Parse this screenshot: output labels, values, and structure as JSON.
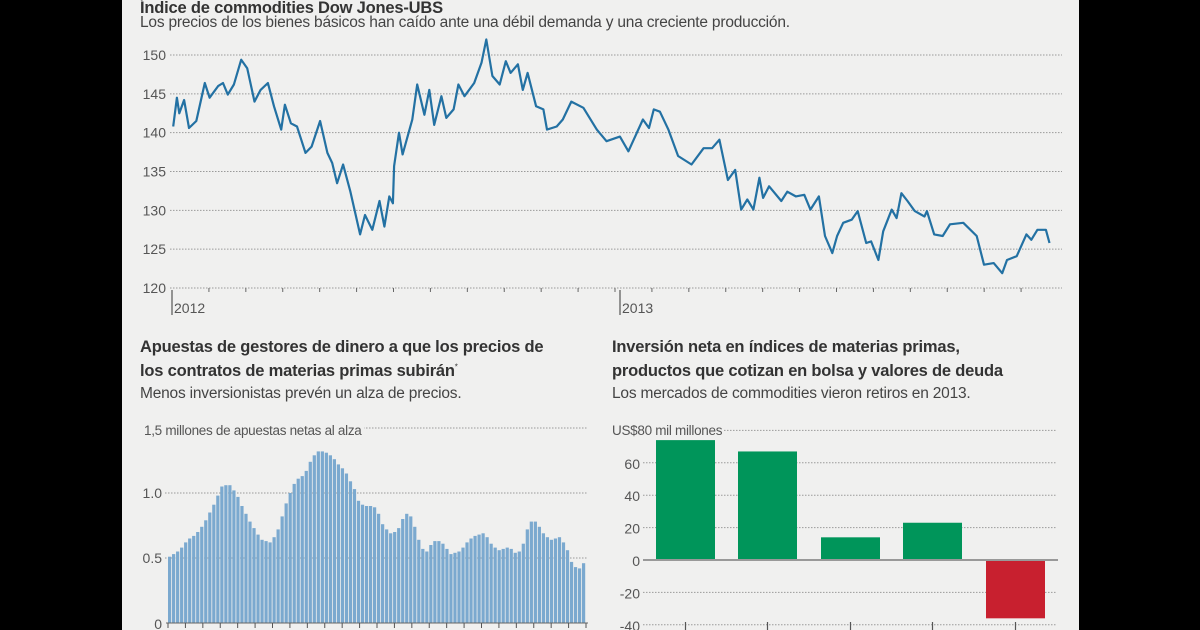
{
  "top": {
    "title": "Índice de commodities Dow Jones-UBS",
    "subtitle": "Los precios de los bienes básicos han caído ante una débil demanda y una creciente producción."
  },
  "bottom_left": {
    "title_line1": "Apuestas de gestores de dinero a que los precios de",
    "title_line2": "los contratos de materias primas subirán",
    "title_mark": "*",
    "subtitle": "Menos inversionistas prevén un alza de precios.",
    "unit_label": "1,5 millones de apuestas netas al alza"
  },
  "bottom_right": {
    "title_line1": "Inversión neta en índices de materias primas,",
    "title_line2": "productos que cotizan en bolsa y valores de deuda",
    "subtitle": "Los mercados de commodities vieron retiros en 2013.",
    "unit_label": "US$80  mil millones"
  },
  "colors": {
    "line": "#2371a3",
    "bars_blue": "#7ba9cf",
    "positive": "#00955a",
    "negative": "#c8202f",
    "background": "#f0f0ef"
  },
  "chart_data": [
    {
      "type": "line",
      "title": "Índice de commodities Dow Jones-UBS",
      "ylim": [
        120,
        150
      ],
      "yticks": [
        150,
        145,
        140,
        135,
        130,
        125,
        120
      ],
      "xlim": [
        "2012-01-01",
        "2013-12-31"
      ],
      "xtick_labels": [
        "2012",
        "2013"
      ],
      "grid": true,
      "x": [
        "2012-01-02",
        "2012-01-05",
        "2012-01-07",
        "2012-01-11",
        "2012-01-15",
        "2012-01-21",
        "2012-01-28",
        "2012-02-01",
        "2012-02-08",
        "2012-02-12",
        "2012-02-16",
        "2012-02-21",
        "2012-02-27",
        "2012-03-03",
        "2012-03-09",
        "2012-03-14",
        "2012-03-20",
        "2012-03-25",
        "2012-03-31",
        "2012-04-03",
        "2012-04-08",
        "2012-04-13",
        "2012-04-20",
        "2012-04-25",
        "2012-05-02",
        "2012-05-08",
        "2012-05-12",
        "2012-05-16",
        "2012-05-21",
        "2012-05-27",
        "2012-06-04",
        "2012-06-08",
        "2012-06-14",
        "2012-06-20",
        "2012-06-24",
        "2012-06-28",
        "2012-07-01",
        "2012-07-02",
        "2012-07-06",
        "2012-07-09",
        "2012-07-17",
        "2012-07-21",
        "2012-07-27",
        "2012-07-31",
        "2012-08-04",
        "2012-08-10",
        "2012-08-14",
        "2012-08-20",
        "2012-08-24",
        "2012-08-29",
        "2012-09-06",
        "2012-09-12",
        "2012-09-16",
        "2012-09-21",
        "2012-09-27",
        "2012-10-02",
        "2012-10-06",
        "2012-10-12",
        "2012-10-16",
        "2012-10-20",
        "2012-10-27",
        "2012-11-02",
        "2012-11-05",
        "2012-11-13",
        "2012-11-18",
        "2012-11-25",
        "2012-12-05",
        "2012-12-16",
        "2012-12-24",
        "2013-01-04",
        "2013-01-11",
        "2013-01-23",
        "2013-01-28",
        "2013-02-01",
        "2013-02-06",
        "2013-02-13",
        "2013-02-21",
        "2013-03-04",
        "2013-03-14",
        "2013-03-21",
        "2013-03-27",
        "2013-04-03",
        "2013-04-09",
        "2013-04-14",
        "2013-04-19",
        "2013-04-24",
        "2013-04-29",
        "2013-05-02",
        "2013-05-07",
        "2013-05-17",
        "2013-05-22",
        "2013-05-29",
        "2013-06-05",
        "2013-06-10",
        "2013-06-17",
        "2013-06-22",
        "2013-06-28",
        "2013-07-02",
        "2013-07-07",
        "2013-07-14",
        "2013-07-19",
        "2013-07-26",
        "2013-07-30",
        "2013-08-05",
        "2013-08-09",
        "2013-08-16",
        "2013-08-20",
        "2013-08-24",
        "2013-08-29",
        "2013-09-04",
        "2013-09-12",
        "2013-09-14",
        "2013-09-20",
        "2013-09-27",
        "2013-10-03",
        "2013-10-14",
        "2013-10-25",
        "2013-10-31",
        "2013-11-08",
        "2013-11-15",
        "2013-11-19",
        "2013-11-27",
        "2013-12-05",
        "2013-12-09",
        "2013-12-14",
        "2013-12-21",
        "2013-12-24"
      ],
      "y": [
        140.8,
        144.5,
        142.5,
        144.2,
        140.6,
        141.5,
        146.4,
        144.5,
        146.0,
        146.4,
        144.9,
        146.2,
        149.4,
        148.3,
        144.0,
        145.5,
        146.4,
        143.4,
        140.4,
        143.6,
        141.2,
        140.8,
        137.4,
        138.2,
        141.5,
        137.4,
        136.1,
        133.5,
        135.9,
        132.4,
        126.9,
        129.4,
        127.5,
        131.2,
        127.9,
        131.8,
        130.9,
        135.7,
        140.0,
        137.2,
        141.7,
        146.2,
        142.3,
        145.5,
        141.0,
        144.7,
        141.9,
        143.0,
        146.2,
        144.7,
        146.4,
        149.0,
        152.0,
        147.3,
        146.2,
        149.2,
        147.7,
        148.8,
        145.5,
        147.7,
        143.4,
        143.0,
        140.4,
        140.8,
        141.7,
        144.0,
        143.2,
        140.4,
        138.9,
        139.5,
        137.6,
        141.7,
        140.6,
        143.0,
        142.7,
        140.4,
        137.0,
        135.9,
        138.0,
        138.0,
        139.1,
        133.9,
        135.2,
        130.1,
        131.4,
        130.1,
        134.2,
        131.6,
        133.1,
        131.2,
        132.4,
        131.8,
        132.0,
        130.1,
        131.8,
        126.7,
        124.5,
        126.7,
        128.4,
        128.8,
        129.9,
        125.8,
        126.0,
        123.6,
        127.3,
        130.1,
        129.0,
        132.2,
        131.2,
        129.9,
        129.2,
        129.9,
        126.9,
        126.7,
        128.2,
        128.4,
        126.7,
        123.0,
        123.2,
        121.9,
        123.6,
        124.1,
        126.9,
        126.2,
        127.5,
        127.5,
        125.8
      ]
    },
    {
      "type": "bar",
      "title": "Apuestas de gestores de dinero a que los precios de los contratos de materias primas subirán",
      "ylabel": "1,5 millones de apuestas netas al alza",
      "ylim": [
        0,
        1.5
      ],
      "ytick_labels": [
        "1,5",
        "1.0",
        "0.5",
        "0"
      ],
      "grid": true,
      "values": [
        0.51,
        0.53,
        0.55,
        0.58,
        0.62,
        0.65,
        0.67,
        0.7,
        0.74,
        0.79,
        0.85,
        0.91,
        0.98,
        1.05,
        1.06,
        1.06,
        1.02,
        0.97,
        0.9,
        0.84,
        0.78,
        0.73,
        0.68,
        0.64,
        0.63,
        0.62,
        0.66,
        0.72,
        0.82,
        0.92,
        1.0,
        1.07,
        1.11,
        1.13,
        1.17,
        1.24,
        1.29,
        1.32,
        1.32,
        1.31,
        1.29,
        1.26,
        1.22,
        1.19,
        1.15,
        1.09,
        1.03,
        0.94,
        0.91,
        0.9,
        0.9,
        0.89,
        0.84,
        0.76,
        0.72,
        0.69,
        0.7,
        0.73,
        0.8,
        0.84,
        0.82,
        0.74,
        0.64,
        0.57,
        0.55,
        0.6,
        0.63,
        0.63,
        0.61,
        0.57,
        0.53,
        0.54,
        0.55,
        0.58,
        0.62,
        0.65,
        0.67,
        0.68,
        0.69,
        0.66,
        0.61,
        0.58,
        0.56,
        0.57,
        0.58,
        0.57,
        0.54,
        0.55,
        0.61,
        0.72,
        0.78,
        0.78,
        0.74,
        0.69,
        0.66,
        0.64,
        0.65,
        0.66,
        0.62,
        0.56,
        0.47,
        0.43,
        0.42,
        0.46
      ]
    },
    {
      "type": "bar",
      "title": "Inversión neta en índices de materias primas, productos que cotizan en bolsa y valores de deuda",
      "ylabel": "US$80 mil millones",
      "ylim": [
        -40,
        80
      ],
      "ytick_labels": [
        "US$80",
        "60",
        "40",
        "20",
        "0",
        "-20",
        "-40"
      ],
      "grid": true,
      "values": [
        74,
        67,
        14,
        23,
        -36
      ]
    }
  ]
}
